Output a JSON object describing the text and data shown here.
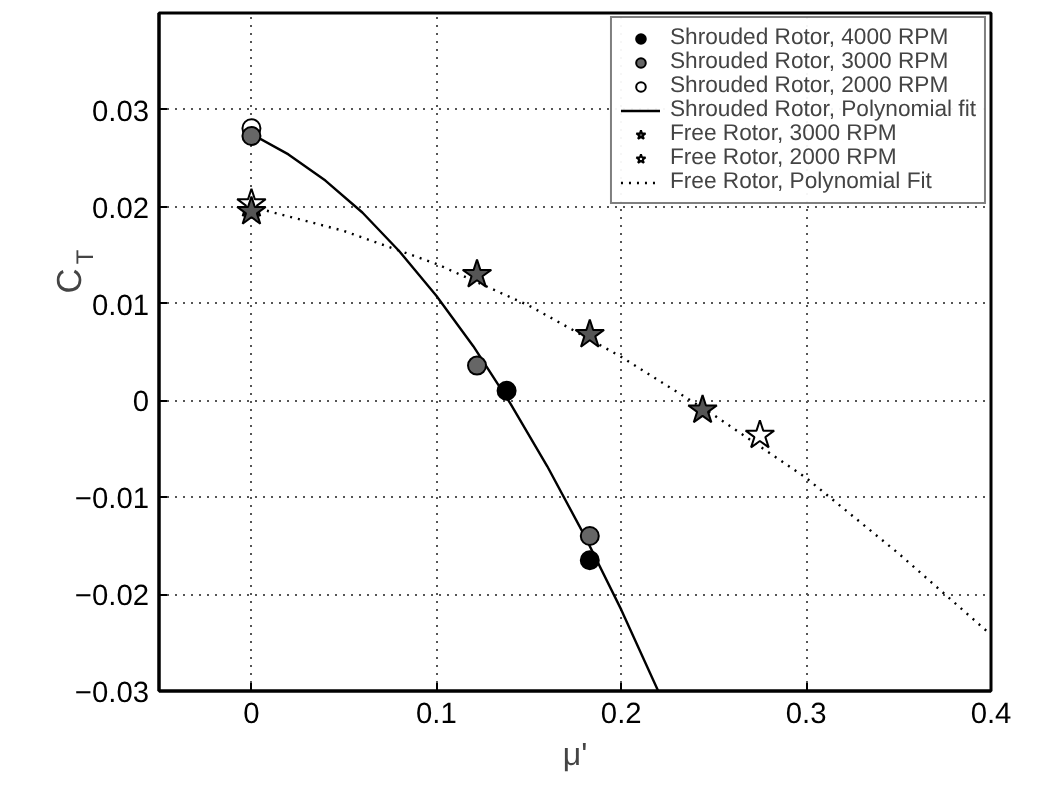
{
  "chart_data": {
    "type": "scatter",
    "xlabel": "μ'",
    "ylabel": "C$_{T}$",
    "xlim": [
      -0.05,
      0.4
    ],
    "ylim": [
      -0.03,
      0.04
    ],
    "xticks": [
      0,
      0.1,
      0.2,
      0.3,
      0.4
    ],
    "yticks": [
      -0.03,
      -0.02,
      -0.01,
      0,
      0.01,
      0.02,
      0.03
    ],
    "grid": true,
    "legend": "top right",
    "series": [
      {
        "name": "Shrouded Rotor, 4000 RPM",
        "marker": "circle",
        "color": "#000000",
        "x": [
          0.138,
          0.183
        ],
        "values": [
          0.001,
          -0.0165
        ]
      },
      {
        "name": "Shrouded Rotor, 3000 RPM",
        "marker": "circle",
        "color": "#666666",
        "x": [
          0,
          0.122,
          0.183
        ],
        "values": [
          0.0273,
          0.0036,
          -0.014
        ]
      },
      {
        "name": "Shrouded Rotor, 2000 RPM",
        "marker": "circle",
        "color": "#ffffff",
        "x": [
          0
        ],
        "values": [
          0.0281
        ]
      },
      {
        "name": "Shrouded Rotor, Polynomial fit",
        "type": "line",
        "line_style": "solid",
        "color": "#000000",
        "x": [
          0,
          0.02,
          0.04,
          0.06,
          0.08,
          0.1,
          0.12,
          0.14,
          0.16,
          0.18,
          0.2,
          0.22
        ],
        "values": [
          0.0275,
          0.0254,
          0.0227,
          0.0194,
          0.0154,
          0.0108,
          0.0056,
          -0.0003,
          -0.0068,
          -0.0139,
          -0.0216,
          -0.03
        ]
      },
      {
        "name": "Free Rotor, 3000 RPM",
        "marker": "star",
        "color": "#555555",
        "x": [
          0,
          0.122,
          0.183,
          0.244
        ],
        "values": [
          0.0195,
          0.013,
          0.0068,
          -0.001
        ]
      },
      {
        "name": "Free Rotor, 2000 RPM",
        "marker": "star",
        "color": "#ffffff",
        "x": [
          0,
          0.275
        ],
        "values": [
          0.0203,
          -0.0036
        ]
      },
      {
        "name": "Free Rotor, Polynomial Fit",
        "type": "line",
        "line_style": "dotted",
        "color": "#000000",
        "x": [
          0,
          0.05,
          0.1,
          0.15,
          0.2,
          0.25,
          0.3,
          0.35,
          0.4
        ],
        "values": [
          0.02,
          0.0175,
          0.0141,
          0.0098,
          0.0045,
          -0.0015,
          -0.008,
          -0.0158,
          -0.0242
        ]
      }
    ]
  }
}
